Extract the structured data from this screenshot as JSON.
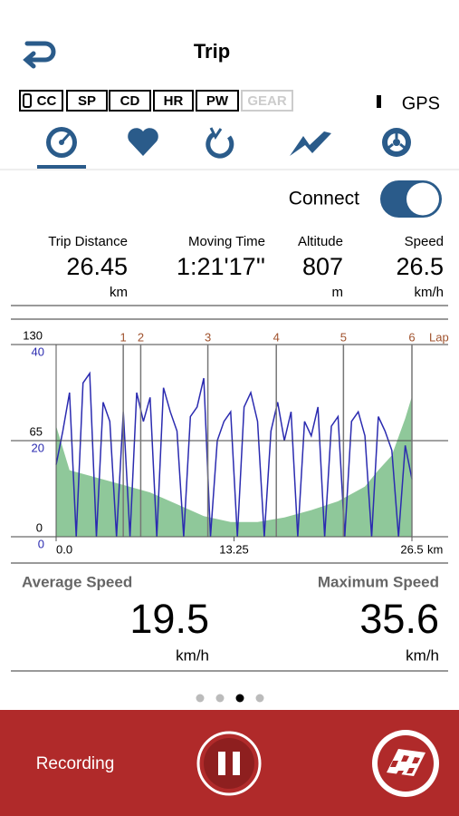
{
  "header": {
    "title": "Trip"
  },
  "sensors": [
    {
      "label": "CC",
      "enabled": true
    },
    {
      "label": "SP",
      "enabled": true
    },
    {
      "label": "CD",
      "enabled": true
    },
    {
      "label": "HR",
      "enabled": true
    },
    {
      "label": "PW",
      "enabled": true
    },
    {
      "label": "GEAR",
      "enabled": false
    }
  ],
  "gps": "GPS",
  "connect": {
    "label": "Connect",
    "on": true
  },
  "metrics": [
    {
      "label": "Trip Distance",
      "value": "26.45",
      "unit": "km"
    },
    {
      "label": "Moving Time",
      "value": "1:21'17''"
    },
    {
      "label": "Altitude",
      "value": "807",
      "unit": "m"
    },
    {
      "label": "Speed",
      "value": "26.5",
      "unit": "km/h"
    }
  ],
  "chart": {
    "type": "line",
    "xlim": [
      0,
      26.5
    ],
    "xticks": [
      {
        "value": 0,
        "label": "0.0"
      },
      13.25,
      26.5
    ],
    "x_unit": "km",
    "ylim": [
      0,
      130
    ],
    "yticks": [
      0,
      65,
      130
    ],
    "y2lim": [
      0,
      40
    ],
    "y2ticks": [
      0,
      20,
      40
    ],
    "laps_label": "Lap",
    "laps": [
      {
        "label": "1",
        "x": 5.0
      },
      {
        "label": "2",
        "x": 6.3
      },
      {
        "label": "3",
        "x": 11.3
      },
      {
        "label": "4",
        "x": 16.4
      },
      {
        "label": "5",
        "x": 21.4
      },
      {
        "label": "6",
        "x": 26.5
      }
    ],
    "series": [
      {
        "type": "area",
        "color": "#8fc89a",
        "x": [
          0,
          1,
          3,
          5,
          7,
          9,
          11,
          13,
          15,
          17,
          19,
          21,
          23,
          24,
          25,
          26,
          26.5
        ],
        "values": [
          75,
          45,
          40,
          35,
          30,
          22,
          14,
          10,
          10,
          13,
          18,
          24,
          34,
          45,
          55,
          80,
          95
        ]
      },
      {
        "type": "line",
        "axis": "y2",
        "color": "#2b2bb0",
        "x": [
          0,
          0.5,
          1,
          1.5,
          2,
          2.5,
          3,
          3.5,
          4,
          4.5,
          5,
          5.5,
          6,
          6.5,
          7,
          7.5,
          8,
          8.5,
          9,
          9.5,
          10,
          10.5,
          11,
          11.5,
          12,
          12.5,
          13,
          13.5,
          14,
          14.5,
          15,
          15.5,
          16,
          16.5,
          17,
          17.5,
          18,
          18.5,
          19,
          19.5,
          20,
          20.5,
          21,
          21.5,
          22,
          22.5,
          23,
          23.5,
          24,
          24.5,
          25,
          25.5,
          26,
          26.5
        ],
        "values": [
          15,
          22,
          30,
          0,
          32,
          34,
          0,
          28,
          24,
          0,
          26,
          0,
          30,
          24,
          29,
          0,
          31,
          26,
          22,
          0,
          25,
          27,
          33,
          0,
          20,
          24,
          26,
          0,
          27,
          30,
          24,
          0,
          22,
          28,
          20,
          26,
          0,
          24,
          21,
          27,
          0,
          23,
          25,
          0,
          24,
          26,
          21,
          0,
          25,
          22,
          18,
          0,
          19,
          12
        ]
      }
    ]
  },
  "summary": [
    {
      "label": "Average Speed",
      "value": "19.5",
      "unit": "km/h"
    },
    {
      "label": "Maximum Speed",
      "value": "35.6",
      "unit": "km/h"
    }
  ],
  "pager": {
    "count": 4,
    "active": 2
  },
  "footer": {
    "status": "Recording"
  }
}
